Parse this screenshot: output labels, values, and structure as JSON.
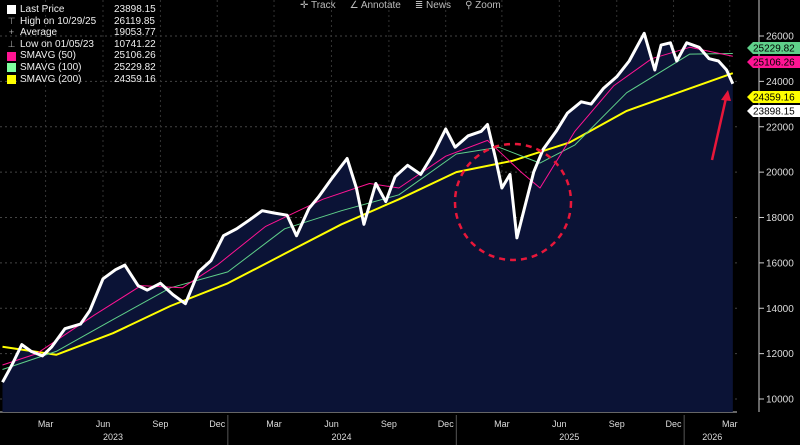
{
  "toolbar": {
    "track": "Track",
    "annotate": "Annotate",
    "news": "News",
    "zoom": "Zoom"
  },
  "legend": [
    {
      "label": "Last Price",
      "value": "23898.15",
      "color": "#ffffff",
      "icon": "square"
    },
    {
      "label": "High on 10/29/25",
      "value": "26119.85",
      "color": "#aaaaaa",
      "icon": "high-marker-icon"
    },
    {
      "label": "Average",
      "value": "19053.77",
      "color": "#aaaaaa",
      "icon": "average-marker-icon"
    },
    {
      "label": "Low on 01/05/23",
      "value": "10741.22",
      "color": "#aaaaaa",
      "icon": "low-marker-icon"
    },
    {
      "label": "SMAVG (50)",
      "value": "25106.26",
      "color": "#ff1493",
      "icon": "square"
    },
    {
      "label": "SMAVG (100)",
      "value": "25229.82",
      "color": "#7fff9f",
      "icon": "square"
    },
    {
      "label": "SMAVG (200)",
      "value": "24359.16",
      "color": "#ffff00",
      "icon": "square"
    }
  ],
  "chart_data": {
    "type": "line",
    "ylim": [
      9000,
      27000
    ],
    "yticks": [
      "10000",
      "12000",
      "14000",
      "16000",
      "18000",
      "20000",
      "22000",
      "24000",
      "26000"
    ],
    "xlim": [
      "2023-01-01",
      "2026-03-31"
    ],
    "xticks": [
      {
        "label": "Mar",
        "date": "2023-03-15"
      },
      {
        "label": "Jun",
        "date": "2023-06-15"
      },
      {
        "label": "Sep",
        "date": "2023-09-15"
      },
      {
        "label": "Dec",
        "date": "2023-12-15"
      },
      {
        "label": "Mar",
        "date": "2024-03-15"
      },
      {
        "label": "Jun",
        "date": "2024-06-15"
      },
      {
        "label": "Sep",
        "date": "2024-09-15"
      },
      {
        "label": "Dec",
        "date": "2024-12-15"
      },
      {
        "label": "Mar",
        "date": "2025-03-15"
      },
      {
        "label": "Jun",
        "date": "2025-06-15"
      },
      {
        "label": "Sep",
        "date": "2025-09-15"
      },
      {
        "label": "Dec",
        "date": "2025-12-15"
      },
      {
        "label": "Mar",
        "date": "2026-03-15"
      }
    ],
    "years": [
      {
        "label": "2023",
        "date": "2023-07-01"
      },
      {
        "label": "2024",
        "date": "2024-07-01"
      },
      {
        "label": "2025",
        "date": "2025-07-01"
      },
      {
        "label": "2026",
        "date": "2026-02-15"
      }
    ],
    "grid": true,
    "series": [
      {
        "name": "Last Price",
        "color": "#ffffff",
        "last_label": "23898.15",
        "points": [
          [
            "2023-01-05",
            10741
          ],
          [
            "2023-01-20",
            11500
          ],
          [
            "2023-02-05",
            12400
          ],
          [
            "2023-02-20",
            12100
          ],
          [
            "2023-03-10",
            11900
          ],
          [
            "2023-03-25",
            12300
          ],
          [
            "2023-04-15",
            13100
          ],
          [
            "2023-05-10",
            13300
          ],
          [
            "2023-05-25",
            13900
          ],
          [
            "2023-06-15",
            15300
          ],
          [
            "2023-07-05",
            15700
          ],
          [
            "2023-07-20",
            15900
          ],
          [
            "2023-08-10",
            15000
          ],
          [
            "2023-08-25",
            14800
          ],
          [
            "2023-09-15",
            15100
          ],
          [
            "2023-10-05",
            14600
          ],
          [
            "2023-10-25",
            14200
          ],
          [
            "2023-11-15",
            15600
          ],
          [
            "2023-12-05",
            16100
          ],
          [
            "2023-12-25",
            17200
          ],
          [
            "2024-01-15",
            17500
          ],
          [
            "2024-02-05",
            17900
          ],
          [
            "2024-02-25",
            18300
          ],
          [
            "2024-03-15",
            18200
          ],
          [
            "2024-04-05",
            18100
          ],
          [
            "2024-04-20",
            17200
          ],
          [
            "2024-05-10",
            18400
          ],
          [
            "2024-05-25",
            18900
          ],
          [
            "2024-06-15",
            19700
          ],
          [
            "2024-07-10",
            20600
          ],
          [
            "2024-07-25",
            19300
          ],
          [
            "2024-08-06",
            17700
          ],
          [
            "2024-08-25",
            19500
          ],
          [
            "2024-09-10",
            18700
          ],
          [
            "2024-09-25",
            19800
          ],
          [
            "2024-10-15",
            20300
          ],
          [
            "2024-11-05",
            19900
          ],
          [
            "2024-11-25",
            20800
          ],
          [
            "2024-12-15",
            21900
          ],
          [
            "2024-12-30",
            21100
          ],
          [
            "2025-01-20",
            21600
          ],
          [
            "2025-02-10",
            21800
          ],
          [
            "2025-02-20",
            22100
          ],
          [
            "2025-03-05",
            20600
          ],
          [
            "2025-03-15",
            19300
          ],
          [
            "2025-03-28",
            19900
          ],
          [
            "2025-04-08",
            17100
          ],
          [
            "2025-04-20",
            18400
          ],
          [
            "2025-05-05",
            20000
          ],
          [
            "2025-05-20",
            21000
          ],
          [
            "2025-06-10",
            21800
          ],
          [
            "2025-06-28",
            22600
          ],
          [
            "2025-07-20",
            23100
          ],
          [
            "2025-08-05",
            23000
          ],
          [
            "2025-08-25",
            23700
          ],
          [
            "2025-09-15",
            24200
          ],
          [
            "2025-10-05",
            24900
          ],
          [
            "2025-10-29",
            26120
          ],
          [
            "2025-11-15",
            24500
          ],
          [
            "2025-11-25",
            25600
          ],
          [
            "2025-12-10",
            25700
          ],
          [
            "2025-12-20",
            24900
          ],
          [
            "2026-01-05",
            25700
          ],
          [
            "2026-01-25",
            25500
          ],
          [
            "2026-02-10",
            25000
          ],
          [
            "2026-02-25",
            24900
          ],
          [
            "2026-03-10",
            24500
          ],
          [
            "2026-03-20",
            23898
          ]
        ]
      },
      {
        "name": "SMAVG (50)",
        "color": "#ff1493",
        "last_label": "25106.26",
        "points": [
          [
            "2023-01-05",
            11500
          ],
          [
            "2023-03-01",
            12000
          ],
          [
            "2023-06-01",
            13700
          ],
          [
            "2023-08-15",
            15000
          ],
          [
            "2023-10-20",
            14900
          ],
          [
            "2023-12-15",
            15900
          ],
          [
            "2024-03-01",
            17600
          ],
          [
            "2024-06-01",
            18800
          ],
          [
            "2024-08-15",
            19500
          ],
          [
            "2024-10-01",
            19300
          ],
          [
            "2024-12-15",
            20700
          ],
          [
            "2025-02-20",
            21400
          ],
          [
            "2025-04-15",
            20000
          ],
          [
            "2025-05-15",
            19300
          ],
          [
            "2025-07-10",
            21800
          ],
          [
            "2025-09-10",
            23800
          ],
          [
            "2025-11-10",
            25000
          ],
          [
            "2026-01-10",
            25500
          ],
          [
            "2026-03-20",
            25106
          ]
        ]
      },
      {
        "name": "SMAVG (100)",
        "color": "#5fd08a",
        "last_label": "25229.82",
        "points": [
          [
            "2023-01-05",
            11300
          ],
          [
            "2023-04-01",
            12100
          ],
          [
            "2023-07-01",
            13500
          ],
          [
            "2023-10-01",
            14900
          ],
          [
            "2024-01-01",
            15600
          ],
          [
            "2024-04-01",
            17500
          ],
          [
            "2024-07-01",
            18300
          ],
          [
            "2024-10-01",
            19000
          ],
          [
            "2025-01-01",
            20800
          ],
          [
            "2025-03-10",
            21100
          ],
          [
            "2025-05-15",
            20400
          ],
          [
            "2025-07-10",
            21200
          ],
          [
            "2025-10-01",
            23500
          ],
          [
            "2026-01-10",
            25200
          ],
          [
            "2026-03-20",
            25230
          ]
        ]
      },
      {
        "name": "SMAVG (200)",
        "color": "#ffff00",
        "last_label": "24359.16",
        "points": [
          [
            "2023-01-05",
            12300
          ],
          [
            "2023-04-01",
            11950
          ],
          [
            "2023-07-01",
            12900
          ],
          [
            "2023-10-01",
            14100
          ],
          [
            "2024-01-01",
            15100
          ],
          [
            "2024-04-01",
            16400
          ],
          [
            "2024-07-01",
            17700
          ],
          [
            "2024-10-01",
            18800
          ],
          [
            "2025-01-01",
            20000
          ],
          [
            "2025-04-01",
            20500
          ],
          [
            "2025-07-01",
            21300
          ],
          [
            "2025-10-01",
            22700
          ],
          [
            "2026-01-01",
            23600
          ],
          [
            "2026-03-20",
            24359
          ]
        ]
      }
    ]
  }
}
